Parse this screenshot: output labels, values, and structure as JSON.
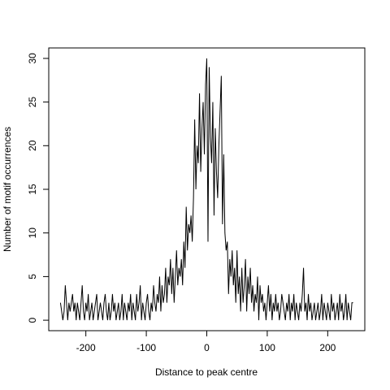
{
  "chart_data": {
    "type": "line",
    "x_label": "Distance to peak centre",
    "y_label": "Number of motif occurrences",
    "x": [
      -242,
      -240,
      -238,
      -236,
      -234,
      -232,
      -230,
      -228,
      -226,
      -224,
      -222,
      -220,
      -218,
      -216,
      -214,
      -212,
      -210,
      -208,
      -206,
      -204,
      -202,
      -200,
      -198,
      -196,
      -194,
      -192,
      -190,
      -188,
      -186,
      -184,
      -182,
      -180,
      -178,
      -176,
      -174,
      -172,
      -170,
      -168,
      -166,
      -164,
      -162,
      -160,
      -158,
      -156,
      -154,
      -152,
      -150,
      -148,
      -146,
      -144,
      -142,
      -140,
      -138,
      -136,
      -134,
      -132,
      -130,
      -128,
      -126,
      -124,
      -122,
      -120,
      -118,
      -116,
      -114,
      -112,
      -110,
      -108,
      -106,
      -104,
      -102,
      -100,
      -98,
      -96,
      -94,
      -92,
      -90,
      -88,
      -86,
      -84,
      -82,
      -80,
      -78,
      -76,
      -74,
      -72,
      -70,
      -68,
      -66,
      -64,
      -62,
      -60,
      -58,
      -56,
      -54,
      -52,
      -50,
      -48,
      -46,
      -44,
      -42,
      -40,
      -38,
      -36,
      -34,
      -32,
      -30,
      -28,
      -26,
      -24,
      -22,
      -20,
      -18,
      -16,
      -14,
      -12,
      -10,
      -8,
      -6,
      -4,
      -2,
      0,
      2,
      4,
      6,
      8,
      10,
      12,
      14,
      16,
      18,
      20,
      22,
      24,
      26,
      28,
      30,
      32,
      34,
      36,
      38,
      40,
      42,
      44,
      46,
      48,
      50,
      52,
      54,
      56,
      58,
      60,
      62,
      64,
      66,
      68,
      70,
      72,
      74,
      76,
      78,
      80,
      82,
      84,
      86,
      88,
      90,
      92,
      94,
      96,
      98,
      100,
      102,
      104,
      106,
      108,
      110,
      112,
      114,
      116,
      118,
      120,
      122,
      124,
      126,
      128,
      130,
      132,
      134,
      136,
      138,
      140,
      142,
      144,
      146,
      148,
      150,
      152,
      154,
      156,
      158,
      160,
      162,
      164,
      166,
      168,
      170,
      172,
      174,
      176,
      178,
      180,
      182,
      184,
      186,
      188,
      190,
      192,
      194,
      196,
      198,
      200,
      202,
      204,
      206,
      208,
      210,
      212,
      214,
      216,
      218,
      220,
      222,
      224,
      226,
      228,
      230,
      232,
      234,
      236,
      238,
      240,
      242
    ],
    "series": [
      {
        "color": "#000000",
        "values": [
          2,
          1,
          0,
          1,
          4,
          2,
          0,
          2,
          1,
          2,
          3,
          1,
          2,
          0,
          2,
          1,
          0,
          2,
          4,
          1,
          0,
          2,
          1,
          3,
          0,
          1,
          2,
          0,
          1,
          2,
          3,
          0,
          1,
          2,
          1,
          0,
          2,
          3,
          1,
          0,
          2,
          0,
          1,
          3,
          1,
          2,
          0,
          1,
          2,
          0,
          1,
          3,
          0,
          2,
          1,
          0,
          2,
          1,
          3,
          0,
          2,
          1,
          0,
          3,
          1,
          2,
          4,
          0,
          2,
          1,
          0,
          2,
          3,
          1,
          0,
          2,
          1,
          4,
          2,
          1,
          3,
          2,
          5,
          1,
          4,
          2,
          3,
          6,
          2,
          5,
          4,
          7,
          3,
          6,
          2,
          5,
          8,
          4,
          6,
          5,
          7,
          4,
          9,
          6,
          13,
          8,
          11,
          10,
          12,
          9,
          14,
          23,
          15,
          20,
          18,
          26,
          17,
          22,
          25,
          19,
          27,
          30,
          9,
          29,
          21,
          18,
          25,
          12,
          22,
          17,
          14,
          20,
          24,
          28,
          11,
          19,
          10,
          8,
          9,
          3,
          7,
          5,
          8,
          4,
          6,
          2,
          8,
          3,
          5,
          1,
          6,
          2,
          4,
          7,
          1,
          5,
          3,
          6,
          2,
          4,
          1,
          3,
          2,
          5,
          0,
          4,
          2,
          3,
          1,
          2,
          0,
          2,
          4,
          1,
          3,
          0,
          2,
          1,
          3,
          1,
          2,
          0,
          1,
          3,
          2,
          1,
          0,
          2,
          1,
          3,
          0,
          2,
          1,
          3,
          0,
          2,
          1,
          0,
          2,
          1,
          3,
          6,
          1,
          2,
          0,
          3,
          1,
          2,
          0,
          1,
          2,
          0,
          1,
          2,
          0,
          1,
          3,
          0,
          2,
          1,
          0,
          2,
          1,
          0,
          3,
          1,
          2,
          0,
          1,
          2,
          0,
          3,
          1,
          2,
          0,
          1,
          3,
          0,
          2,
          1,
          0,
          2,
          2
        ]
      }
    ],
    "xlim": [
      -261.36,
      261.36
    ],
    "ylim": [
      -1.2,
      31.2
    ],
    "xticks": [
      -200,
      -100,
      0,
      100,
      200
    ],
    "yticks": [
      0,
      5,
      10,
      15,
      20,
      25,
      30
    ]
  }
}
